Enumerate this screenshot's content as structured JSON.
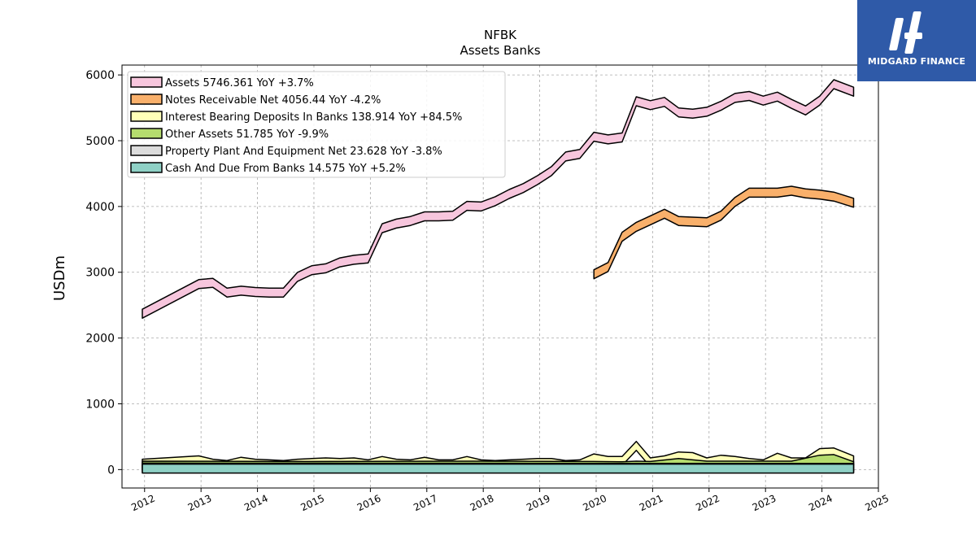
{
  "brand": {
    "name": "MIDGARD FINANCE",
    "color": "#2f5aa8"
  },
  "chart_data": {
    "type": "area",
    "title": "NFBK",
    "subtitle": "Assets Banks",
    "ylabel": "USDm",
    "xlabel": "",
    "xlim": [
      2011.6,
      2025.0
    ],
    "ylim": [
      -280,
      6150
    ],
    "yticks": [
      0,
      1000,
      2000,
      3000,
      4000,
      5000,
      6000
    ],
    "xticks": [
      "2012",
      "2013",
      "2014",
      "2015",
      "2016",
      "2017",
      "2018",
      "2019",
      "2020",
      "2021",
      "2022",
      "2023",
      "2024",
      "2025"
    ],
    "grid": true,
    "legend_position": "top-left",
    "series": [
      {
        "name": "Assets",
        "legend": "Assets  5746.361 YoY +3.7%",
        "color": "#f7c6dd",
        "x": [
          2011.96,
          2012.96,
          2013.21,
          2013.46,
          2013.71,
          2013.96,
          2014.21,
          2014.46,
          2014.71,
          2014.96,
          2015.21,
          2015.46,
          2015.71,
          2015.96,
          2016.21,
          2016.46,
          2016.71,
          2016.96,
          2017.21,
          2017.46,
          2017.71,
          2017.96,
          2018.21,
          2018.46,
          2018.71,
          2018.96,
          2019.21,
          2019.46,
          2019.71,
          2019.96,
          2020.21,
          2020.46,
          2020.71,
          2020.96,
          2021.21,
          2021.46,
          2021.71,
          2021.96,
          2022.21,
          2022.46,
          2022.71,
          2022.96,
          2023.21,
          2023.46,
          2023.71,
          2023.96,
          2024.21,
          2024.56
        ],
        "values": [
          2370,
          2820,
          2840,
          2690,
          2720,
          2700,
          2690,
          2690,
          2930,
          3030,
          3060,
          3150,
          3190,
          3210,
          3670,
          3740,
          3780,
          3850,
          3850,
          3860,
          4010,
          4000,
          4080,
          4190,
          4280,
          4400,
          4540,
          4760,
          4800,
          5060,
          5020,
          5050,
          5600,
          5540,
          5590,
          5430,
          5410,
          5440,
          5530,
          5650,
          5680,
          5610,
          5670,
          5560,
          5460,
          5610,
          5860,
          5746
        ]
      },
      {
        "name": "Notes Receivable Net",
        "legend": "Notes Receivable Net  4056.44 YoY -4.2%",
        "color": "#f9b06b",
        "x": [
          2019.96,
          2020.21,
          2020.46,
          2020.71,
          2020.96,
          2021.21,
          2021.46,
          2021.71,
          2021.96,
          2022.21,
          2022.46,
          2022.71,
          2022.96,
          2023.21,
          2023.46,
          2023.71,
          2023.96,
          2024.21,
          2024.56
        ],
        "values": [
          2970,
          3080,
          3540,
          3690,
          3790,
          3890,
          3780,
          3770,
          3760,
          3860,
          4070,
          4210,
          4210,
          4210,
          4240,
          4200,
          4180,
          4150,
          4056
        ]
      },
      {
        "name": "Interest Bearing Deposits In Banks",
        "legend": "Interest Bearing Deposits In Banks  138.914 YoY +84.5%",
        "color": "#ffffb8",
        "x": [
          2011.96,
          2012.96,
          2013.21,
          2013.46,
          2013.71,
          2013.96,
          2014.21,
          2014.46,
          2014.71,
          2014.96,
          2015.21,
          2015.46,
          2015.71,
          2015.96,
          2016.21,
          2016.46,
          2016.71,
          2016.96,
          2017.21,
          2017.46,
          2017.71,
          2017.96,
          2018.21,
          2018.46,
          2018.71,
          2018.96,
          2019.21,
          2019.46,
          2019.71,
          2019.96,
          2020.21,
          2020.46,
          2020.71,
          2020.96,
          2021.21,
          2021.46,
          2021.71,
          2021.96,
          2022.21,
          2022.46,
          2022.71,
          2022.96,
          2023.21,
          2023.46,
          2023.71,
          2023.96,
          2024.21,
          2024.56
        ],
        "values": [
          90,
          140,
          90,
          70,
          120,
          90,
          80,
          70,
          90,
          100,
          110,
          100,
          110,
          80,
          130,
          90,
          80,
          120,
          80,
          80,
          130,
          80,
          70,
          80,
          90,
          100,
          100,
          70,
          80,
          170,
          130,
          130,
          360,
          110,
          140,
          200,
          190,
          110,
          150,
          130,
          100,
          80,
          180,
          110,
          110,
          250,
          260,
          139
        ]
      },
      {
        "name": "Other Assets",
        "legend": "Other Assets  51.785 YoY -9.9%",
        "color": "#b5dc6e",
        "x": [
          2011.96,
          2014.96,
          2017.96,
          2019.96,
          2020.46,
          2020.71,
          2020.96,
          2021.46,
          2021.96,
          2022.46,
          2022.96,
          2023.46,
          2023.96,
          2024.21,
          2024.56
        ],
        "values": [
          60,
          55,
          60,
          55,
          50,
          60,
          55,
          100,
          60,
          60,
          60,
          60,
          150,
          160,
          52
        ]
      },
      {
        "name": "Property Plant And Equipment Net",
        "legend": "Property Plant And Equipment Net  23.628 YoY -3.8%",
        "color": "#dcdcdc",
        "x": [
          2011.96,
          2024.56
        ],
        "values": [
          30,
          24
        ]
      },
      {
        "name": "Cash And Due From Banks",
        "legend": "Cash And Due From Banks  14.575 YoY +5.2%",
        "color": "#8fd1c6",
        "x": [
          2011.96,
          2024.56
        ],
        "values": [
          15,
          15
        ]
      }
    ]
  }
}
